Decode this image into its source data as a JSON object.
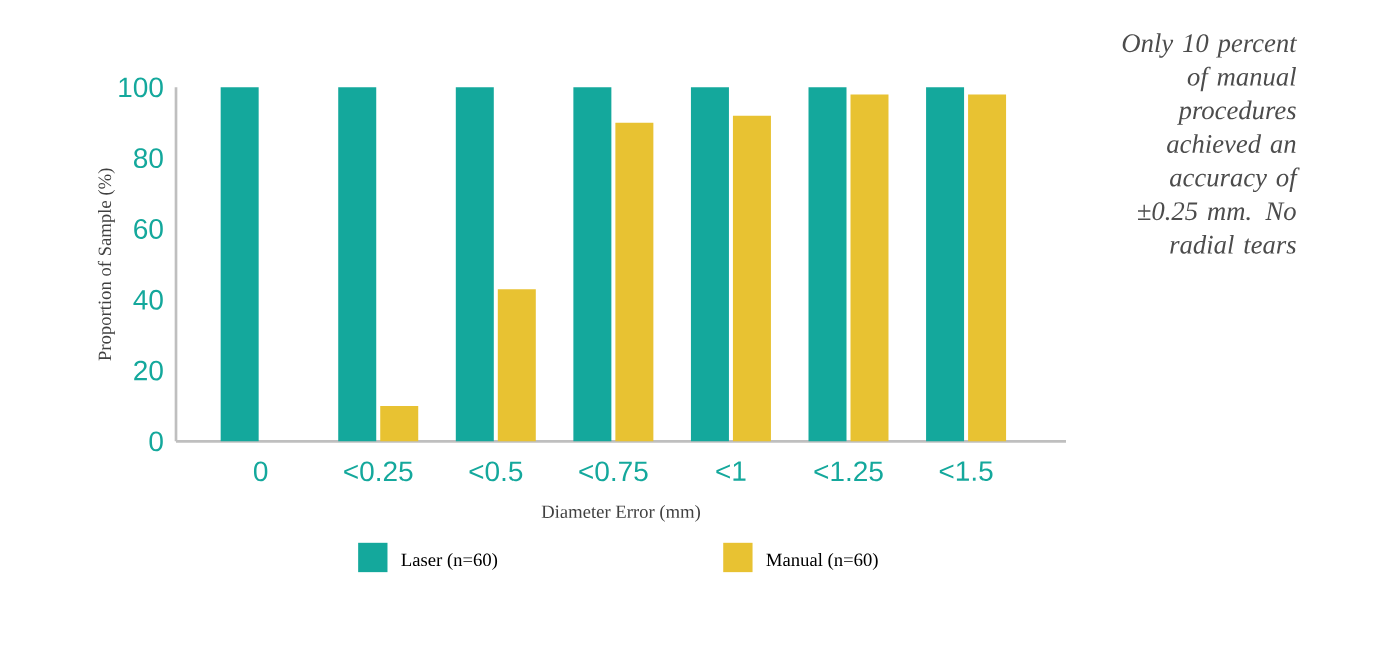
{
  "chart_data": {
    "type": "bar",
    "xlabel": "Diameter Error (mm)",
    "ylabel": "Proportion of Sample (%)",
    "categories": [
      "0",
      "<0.25",
      "<0.5",
      "<0.75",
      "<1",
      "<1.25",
      "<1.5"
    ],
    "series": [
      {
        "name": "Laser (n=60)",
        "color": "#14a89c",
        "values": [
          100,
          100,
          100,
          100,
          100,
          100,
          100
        ]
      },
      {
        "name": "Manual (n=60)",
        "color": "#e8c232",
        "values": [
          0,
          10,
          43,
          90,
          92,
          98,
          98
        ]
      }
    ],
    "ylim": [
      0,
      100
    ],
    "yticks": [
      0,
      20,
      40,
      60,
      80,
      100
    ],
    "grid": false,
    "legend": "bottom",
    "annotations": [
      "Only 10 percent of manual procedures achieved an accuracy of ±0.25 mm. No radial tears"
    ]
  }
}
